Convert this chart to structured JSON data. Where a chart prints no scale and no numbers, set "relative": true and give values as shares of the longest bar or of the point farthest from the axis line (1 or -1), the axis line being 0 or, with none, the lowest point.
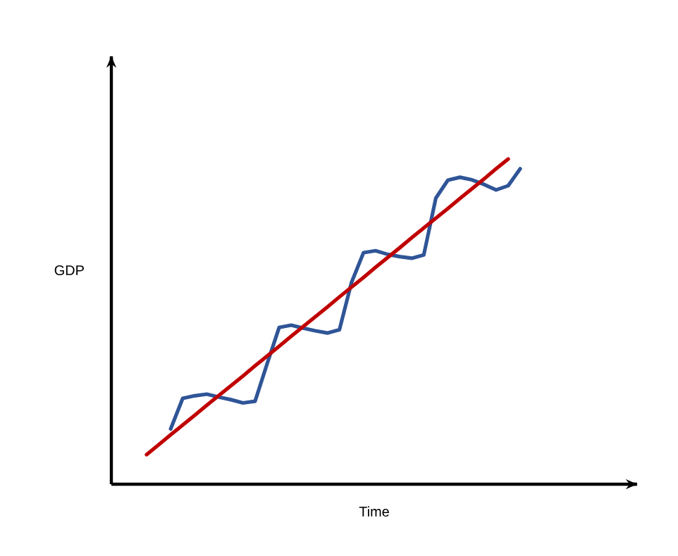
{
  "chart_data": {
    "type": "line",
    "xlabel": "Time",
    "ylabel": "GDP",
    "relative": true,
    "tick_labels": false,
    "categories": [
      null,
      null,
      null,
      null,
      null,
      null,
      null,
      null,
      null,
      null,
      null,
      null,
      null,
      null,
      null,
      null,
      null,
      null,
      null,
      null,
      null,
      null,
      null,
      null,
      null,
      null,
      null,
      null,
      null,
      null,
      null,
      null
    ],
    "series": [
      {
        "color": "#2f5597",
        "values": [
          null,
          null,
          0.17,
          0.264,
          0.272,
          0.277,
          0.268,
          0.26,
          0.25,
          0.255,
          0.37,
          0.482,
          0.489,
          0.48,
          0.472,
          0.465,
          0.475,
          0.62,
          0.712,
          0.718,
          0.707,
          0.7,
          0.695,
          0.705,
          0.88,
          0.935,
          0.944,
          0.936,
          0.922,
          0.905,
          0.918,
          0.97
        ]
      },
      {
        "color": "#c00000",
        "values": [
          0.091,
          0.121,
          0.152,
          0.182,
          0.212,
          0.243,
          0.273,
          0.303,
          0.333,
          0.364,
          0.394,
          0.424,
          0.455,
          0.485,
          0.515,
          0.545,
          0.576,
          0.606,
          0.636,
          0.667,
          0.697,
          0.727,
          0.758,
          0.788,
          0.818,
          0.848,
          0.879,
          0.909,
          0.939,
          0.97,
          1.0,
          null
        ]
      }
    ]
  }
}
